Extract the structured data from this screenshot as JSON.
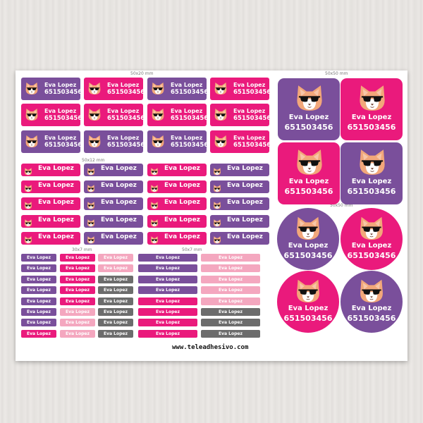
{
  "product": {
    "name": "Eva Lopez",
    "phone": "651503456",
    "website": "www.teleadhesivo.com"
  },
  "sizes": {
    "s50x20": "50x20 mm",
    "s50x12": "50x12 mm",
    "s30x7": "30x7 mm",
    "s50x7": "50x7 mm",
    "s50x50_square": "50x50 mm",
    "s50x50_round": "50x50 mm"
  },
  "colors": {
    "purple": "#7a4f9b",
    "pink": "#ea1a7c",
    "light_pink": "#f4a7bf",
    "gray": "#6c6c6c",
    "cat_face": "#f2a77a",
    "sunglasses": "#111111"
  },
  "icon": "cat-with-sunglasses-icon",
  "groups": {
    "g50x20": [
      "purple",
      "pink",
      "purple",
      "pink",
      "pink",
      "pink",
      "pink",
      "pink",
      "purple",
      "purple",
      "purple",
      "pink"
    ],
    "g50x12": [
      "pink",
      "purple",
      "pink",
      "purple",
      "pink",
      "purple",
      "pink",
      "purple",
      "pink",
      "purple",
      "pink",
      "purple",
      "pink",
      "purple",
      "pink",
      "purple",
      "pink",
      "purple",
      "pink",
      "purple"
    ],
    "g30x7_col1": [
      "purple",
      "purple",
      "purple",
      "purple",
      "purple",
      "purple",
      "purple",
      "pink"
    ],
    "g30x7_col2": [
      "pink",
      "pink",
      "pink",
      "pink",
      "pink",
      "lpink",
      "lpink",
      "lpink"
    ],
    "g30x7_col3": [
      "lpink",
      "lpink",
      "gray",
      "gray",
      "gray",
      "gray",
      "gray",
      "gray"
    ],
    "g50x7_col1": [
      "purple",
      "purple",
      "purple",
      "purple",
      "pink",
      "pink",
      "pink",
      "pink"
    ],
    "g50x7_col2": [
      "lpink",
      "lpink",
      "lpink",
      "lpink",
      "lpink",
      "gray",
      "gray",
      "gray"
    ],
    "square": [
      "purple",
      "pink",
      "pink",
      "purple"
    ],
    "round": [
      "purple",
      "pink",
      "pink",
      "purple"
    ]
  }
}
